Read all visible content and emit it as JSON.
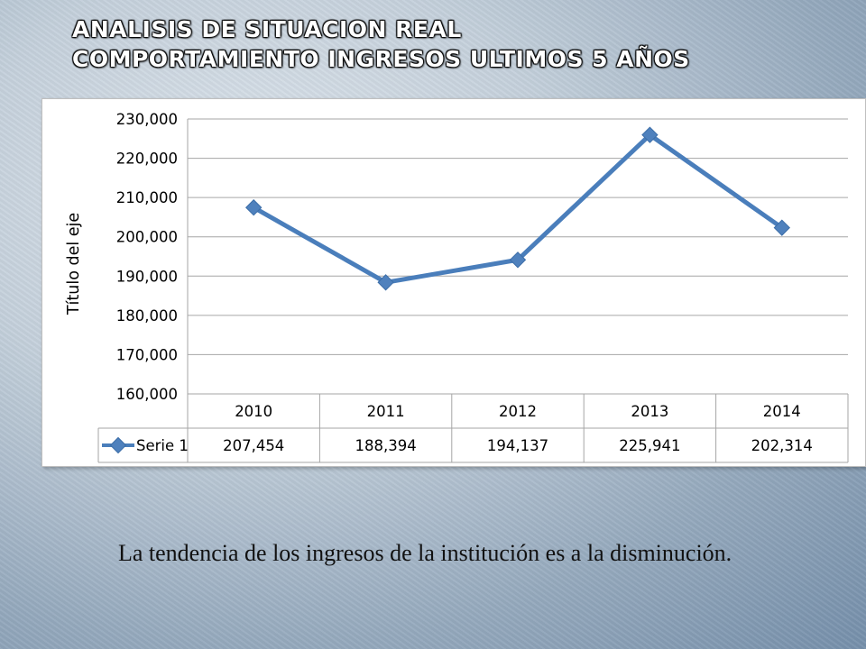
{
  "slide": {
    "title_line1": "Analisis de situacion real",
    "title_line2": "Comportamiento ingresos ultimos 5 años",
    "caption": "La tendencia de los ingresos de la institución es a la disminución."
  },
  "colors": {
    "series": "#4a7ebb",
    "marker": "#4f81bd",
    "grid": "#a6a6a6",
    "axis_text": "#000000"
  },
  "chart_data": {
    "type": "line",
    "title": "",
    "xlabel": "",
    "ylabel": "Título del eje",
    "categories": [
      "2010",
      "2011",
      "2012",
      "2013",
      "2014"
    ],
    "series": [
      {
        "name": "Serie 1",
        "values": [
          207454,
          188394,
          194137,
          225941,
          202314
        ],
        "value_labels": [
          "207,454",
          "188,394",
          "194,137",
          "225,941",
          "202,314"
        ]
      }
    ],
    "ylim": [
      160000,
      230000
    ],
    "ytick_step": 10000,
    "ytick_labels": [
      "160,000",
      "170,000",
      "180,000",
      "190,000",
      "200,000",
      "210,000",
      "220,000",
      "230,000"
    ],
    "grid": true,
    "legend": "data-table",
    "data_table": true
  }
}
